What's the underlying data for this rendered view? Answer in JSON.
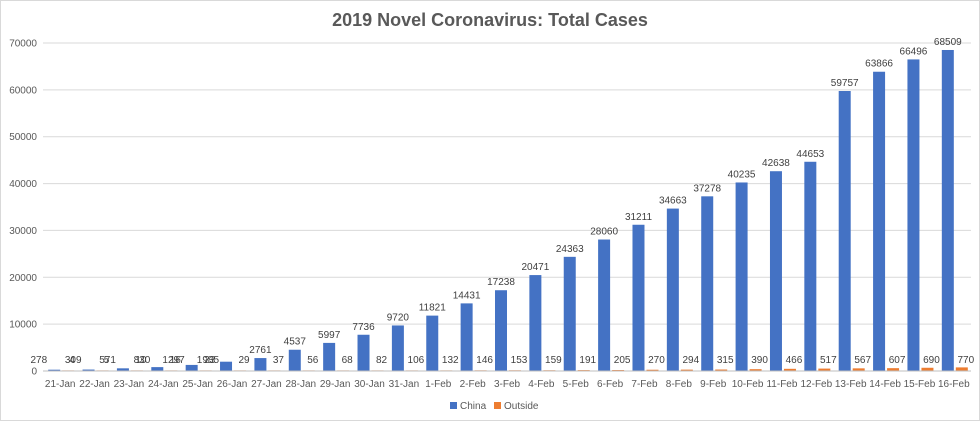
{
  "chart_data": {
    "type": "bar",
    "title": "2019 Novel Coronavirus: Total Cases",
    "xlabel": "",
    "ylabel": "",
    "ylim": [
      0,
      70000
    ],
    "yticks": [
      "0",
      "10000",
      "20000",
      "30000",
      "40000",
      "50000",
      "60000",
      "70000"
    ],
    "grid": true,
    "legend_position": "bottom",
    "categories": [
      "21-Jan",
      "22-Jan",
      "23-Jan",
      "24-Jan",
      "25-Jan",
      "26-Jan",
      "27-Jan",
      "28-Jan",
      "29-Jan",
      "30-Jan",
      "31-Jan",
      "1-Feb",
      "2-Feb",
      "3-Feb",
      "4-Feb",
      "5-Feb",
      "6-Feb",
      "7-Feb",
      "8-Feb",
      "9-Feb",
      "10-Feb",
      "11-Feb",
      "12-Feb",
      "13-Feb",
      "14-Feb",
      "15-Feb",
      "16-Feb"
    ],
    "series": [
      {
        "name": "China",
        "color": "#4472c4",
        "values": [
          278,
          309,
          571,
          830,
          1297,
          1985,
          2761,
          4537,
          5997,
          7736,
          9720,
          11821,
          14431,
          17238,
          20471,
          24363,
          28060,
          31211,
          34663,
          37278,
          40235,
          42638,
          44653,
          59757,
          63866,
          66496,
          68509
        ]
      },
      {
        "name": "Outside",
        "color": "#ed7d31",
        "values": [
          4,
          5,
          10,
          16,
          23,
          29,
          37,
          56,
          68,
          82,
          106,
          132,
          146,
          153,
          159,
          191,
          205,
          270,
          294,
          315,
          390,
          466,
          517,
          567,
          607,
          690,
          770
        ]
      }
    ]
  }
}
